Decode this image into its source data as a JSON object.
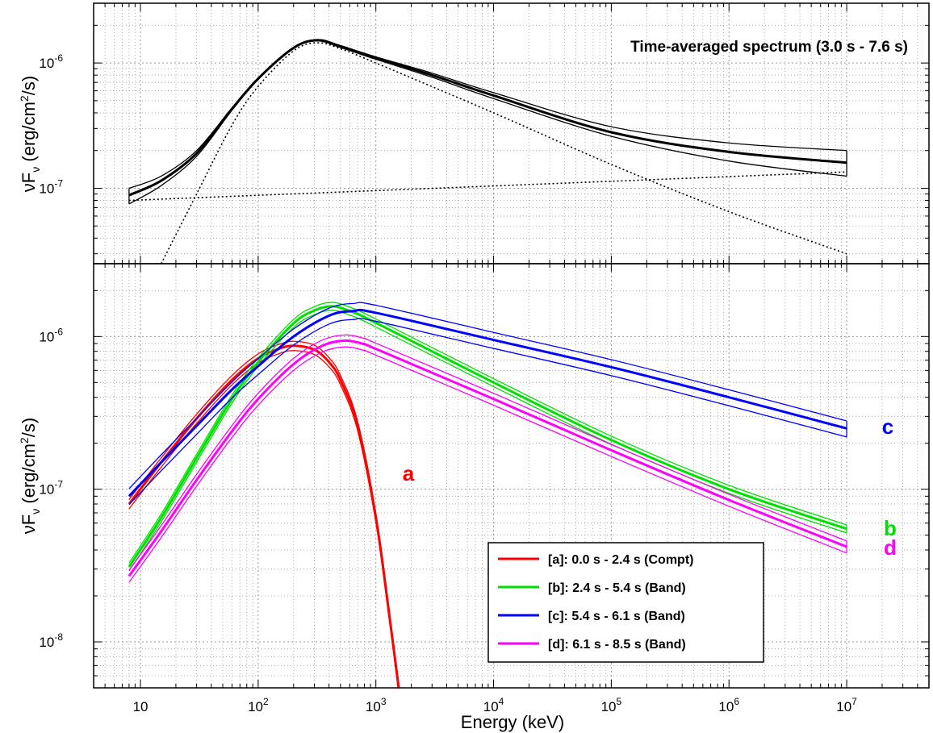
{
  "chart_data": [
    {
      "type": "line",
      "panel": "top",
      "title": "Time-averaged spectrum (3.0 s - 7.6 s)",
      "xlabel": "",
      "ylabel_main": "νF",
      "ylabel_sub": "ν",
      "ylabel_unit_pre": " (erg/cm",
      "ylabel_unit_sup": "2",
      "ylabel_unit_post": "/s)",
      "xscale": "log",
      "yscale": "log",
      "xlim": [
        4,
        50000000
      ],
      "ylim": [
        2.5e-08,
        3e-06
      ],
      "grid": true,
      "yticks": [
        {
          "value": 1e-07,
          "base": "10",
          "exp": "-7"
        },
        {
          "value": 1e-06,
          "base": "10",
          "exp": "-6"
        }
      ],
      "series": [
        {
          "role": "total model",
          "color": "#000000",
          "x": [
            8,
            15,
            30,
            60,
            100,
            200,
            320,
            500,
            1000,
            3000,
            10000,
            100000,
            1000000,
            10000000
          ],
          "y": [
            8.8e-08,
            1.15e-07,
            1.9e-07,
            4.3e-07,
            7.5e-07,
            1.32e-06,
            1.52e-06,
            1.35e-06,
            1.1e-06,
            8e-07,
            5.5e-07,
            2.8e-07,
            1.95e-07,
            1.6e-07
          ]
        },
        {
          "role": "upper envelope",
          "color": "#000000",
          "x": [
            8,
            15,
            30,
            60,
            100,
            200,
            320,
            500,
            1000,
            3000,
            10000,
            100000,
            1000000,
            10000000
          ],
          "y": [
            1e-07,
            1.25e-07,
            2e-07,
            4.4e-07,
            7.6e-07,
            1.33e-06,
            1.54e-06,
            1.38e-06,
            1.12e-06,
            8.3e-07,
            5.8e-07,
            3.1e-07,
            2.3e-07,
            2e-07
          ]
        },
        {
          "role": "lower envelope",
          "color": "#000000",
          "x": [
            8,
            15,
            30,
            60,
            100,
            200,
            320,
            500,
            1000,
            3000,
            10000,
            100000,
            1000000,
            10000000
          ],
          "y": [
            7.5e-08,
            1.05e-07,
            1.8e-07,
            4.2e-07,
            7.4e-07,
            1.31e-06,
            1.5e-06,
            1.33e-06,
            1.07e-06,
            7.7e-07,
            5.2e-07,
            2.6e-07,
            1.65e-07,
            1.25e-07
          ]
        },
        {
          "role": "Band component",
          "color": "#000000",
          "dash": "dotted",
          "x": [
            15,
            30,
            60,
            100,
            200,
            320,
            500,
            1000,
            10000,
            100000,
            1000000,
            10000000
          ],
          "y": [
            2.5e-08,
            9e-08,
            3.2e-07,
            6.5e-07,
            1.25e-06,
            1.45e-06,
            1.3e-06,
            1e-06,
            4e-07,
            1.55e-07,
            6.5e-08,
            3e-08
          ]
        },
        {
          "role": "power-law component",
          "color": "#000000",
          "dash": "dotted",
          "x": [
            8,
            10000000
          ],
          "y": [
            8e-08,
            1.35e-07
          ]
        }
      ]
    },
    {
      "type": "line",
      "panel": "bottom",
      "xlabel": "Energy (keV)",
      "ylabel_main": "νF",
      "ylabel_sub": "ν",
      "ylabel_unit_pre": " (erg/cm",
      "ylabel_unit_sup": "2",
      "ylabel_unit_post": "/s)",
      "xscale": "log",
      "yscale": "log",
      "xlim": [
        4,
        50000000
      ],
      "ylim": [
        5e-09,
        3e-06
      ],
      "grid": true,
      "xticks": [
        {
          "value": 10,
          "base": "10",
          "exp": ""
        },
        {
          "value": 100,
          "base": "10",
          "exp": "2"
        },
        {
          "value": 1000,
          "base": "10",
          "exp": "3"
        },
        {
          "value": 10000,
          "base": "10",
          "exp": "4"
        },
        {
          "value": 100000,
          "base": "10",
          "exp": "5"
        },
        {
          "value": 1000000,
          "base": "10",
          "exp": "6"
        },
        {
          "value": 10000000,
          "base": "10",
          "exp": "7"
        }
      ],
      "yticks": [
        {
          "value": 1e-08,
          "base": "10",
          "exp": "-8"
        },
        {
          "value": 1e-07,
          "base": "10",
          "exp": "-7"
        },
        {
          "value": 1e-06,
          "base": "10",
          "exp": "-6"
        }
      ],
      "legend": {
        "position": "bottom-right",
        "entries": [
          {
            "label": "[a]: 0.0 s - 2.4 s (Compt)",
            "color": "#ff0000"
          },
          {
            "label": "[b]: 2.4 s - 5.4 s (Band)",
            "color": "#00e000"
          },
          {
            "label": "[c]: 5.4 s - 6.1 s (Band)",
            "color": "#0000ff"
          },
          {
            "label": "[d]: 6.1 s - 8.5 s (Band)",
            "color": "#ff00ff"
          }
        ]
      },
      "series": [
        {
          "name": "a",
          "tag": "a",
          "color": "#ff0000",
          "x": [
            8,
            15,
            30,
            60,
            100,
            150,
            200,
            300,
            400,
            500,
            700,
            1000,
            1300,
            1700
          ],
          "y": [
            8e-08,
            1.5e-07,
            2.9e-07,
            5.2e-07,
            7.2e-07,
            8.3e-07,
            8.7e-07,
            8.2e-07,
            6.8e-07,
            5.2e-07,
            2.6e-07,
            6.5e-08,
            1.5e-08,
            3e-09
          ],
          "band": 0.07
        },
        {
          "name": "b",
          "tag": "b",
          "color": "#00e000",
          "x": [
            8,
            15,
            30,
            60,
            100,
            200,
            300,
            420,
            600,
            1000,
            10000,
            100000,
            1000000,
            10000000
          ],
          "y": [
            3.1e-08,
            6.5e-08,
            1.6e-07,
            3.9e-07,
            6.8e-07,
            1.22e-06,
            1.48e-06,
            1.58e-06,
            1.47e-06,
            1.23e-06,
            5e-07,
            2.1e-07,
            1e-07,
            5.5e-08
          ],
          "band": 0.06
        },
        {
          "name": "c",
          "tag": "c",
          "color": "#0000ff",
          "x": [
            8,
            15,
            30,
            60,
            100,
            200,
            400,
            650,
            1000,
            10000,
            100000,
            1000000,
            10000000
          ],
          "y": [
            9e-08,
            1.5e-07,
            2.6e-07,
            4.5e-07,
            6.4e-07,
            1e-06,
            1.37e-06,
            1.47e-06,
            1.43e-06,
            9.5e-07,
            6.3e-07,
            4e-07,
            2.5e-07
          ],
          "band": 0.12
        },
        {
          "name": "d",
          "tag": "d",
          "color": "#ff00ff",
          "x": [
            8,
            15,
            30,
            60,
            100,
            200,
            350,
            550,
            800,
            1000,
            10000,
            100000,
            1000000,
            10000000
          ],
          "y": [
            2.7e-08,
            5.3e-08,
            1.15e-07,
            2.4e-07,
            3.9e-07,
            6.6e-07,
            8.7e-07,
            9.4e-07,
            8.9e-07,
            8.3e-07,
            3.9e-07,
            1.8e-07,
            8.5e-08,
            4.2e-08
          ],
          "band": 0.09
        }
      ]
    }
  ]
}
